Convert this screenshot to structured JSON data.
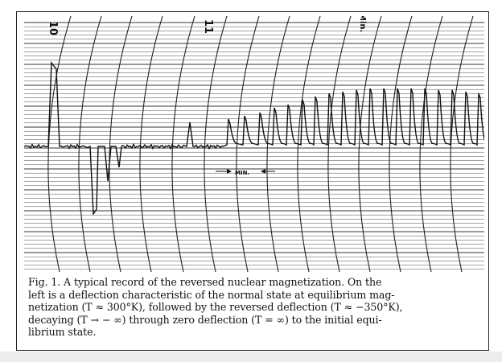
{
  "figure": {
    "chart_label_10": "10",
    "chart_label_11": "11",
    "chart_label_min": "Min.",
    "scale_annotation": "MIN.",
    "caption_lines": [
      "Fig. 1. A typical record of the reversed nuclear magnetization. On the",
      "left is a deflection characteristic of the normal state at equilibrium mag-",
      "netization (T ≈ 300°K), followed by the reversed deflection (T ≈ −350°K),",
      "decaying (T → − ∞) through zero deflection (T = ∞) to the initial equi-",
      "librium state."
    ]
  }
}
